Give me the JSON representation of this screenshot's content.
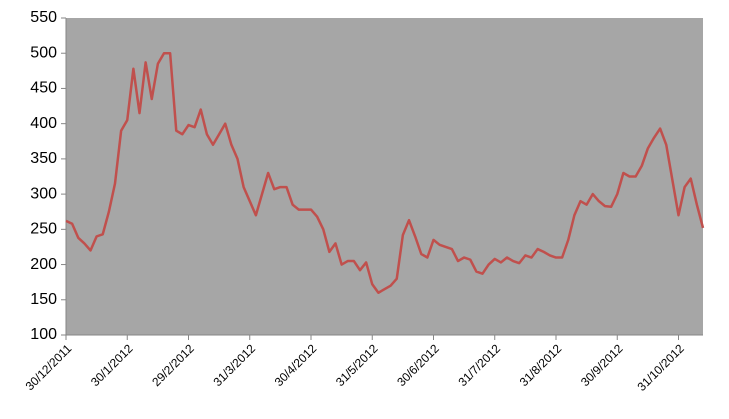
{
  "chart_data": {
    "type": "line",
    "categories": [
      "30/12/2011",
      null,
      null,
      null,
      null,
      null,
      null,
      null,
      null,
      null,
      "30/1/2012",
      null,
      null,
      null,
      null,
      null,
      null,
      null,
      null,
      null,
      "29/2/2012",
      null,
      null,
      null,
      null,
      null,
      null,
      null,
      null,
      null,
      "31/3/2012",
      null,
      null,
      null,
      null,
      null,
      null,
      null,
      null,
      null,
      "30/4/2012",
      null,
      null,
      null,
      null,
      null,
      null,
      null,
      null,
      null,
      "31/5/2012",
      null,
      null,
      null,
      null,
      null,
      null,
      null,
      null,
      null,
      "30/6/2012",
      null,
      null,
      null,
      null,
      null,
      null,
      null,
      null,
      null,
      "31/7/2012",
      null,
      null,
      null,
      null,
      null,
      null,
      null,
      null,
      null,
      "31/8/2012",
      null,
      null,
      null,
      null,
      null,
      null,
      null,
      null,
      null,
      "30/9/2012",
      null,
      null,
      null,
      null,
      null,
      null,
      null,
      null,
      null,
      "31/10/2012",
      null,
      null,
      null,
      null
    ],
    "values": [
      262,
      258,
      238,
      230,
      220,
      240,
      243,
      275,
      315,
      390,
      405,
      478,
      415,
      487,
      435,
      485,
      500,
      500,
      390,
      385,
      398,
      395,
      420,
      385,
      370,
      385,
      400,
      370,
      350,
      310,
      290,
      270,
      300,
      330,
      307,
      310,
      310,
      285,
      278,
      278,
      278,
      268,
      250,
      218,
      230,
      200,
      205,
      205,
      192,
      203,
      172,
      160,
      165,
      170,
      180,
      242,
      263,
      240,
      215,
      210,
      235,
      228,
      225,
      222,
      205,
      210,
      207,
      190,
      187,
      200,
      208,
      203,
      210,
      205,
      202,
      213,
      210,
      222,
      218,
      213,
      210,
      210,
      235,
      270,
      290,
      285,
      300,
      290,
      283,
      282,
      300,
      330,
      325,
      325,
      340,
      365,
      380,
      393,
      370,
      320,
      270,
      310,
      322,
      285,
      252
    ],
    "color": "#c0504d",
    "background": "#a6a6a6",
    "ylim": [
      100,
      550
    ],
    "yticks": [
      100,
      150,
      200,
      250,
      300,
      350,
      400,
      450,
      500,
      550
    ],
    "grid": false
  }
}
